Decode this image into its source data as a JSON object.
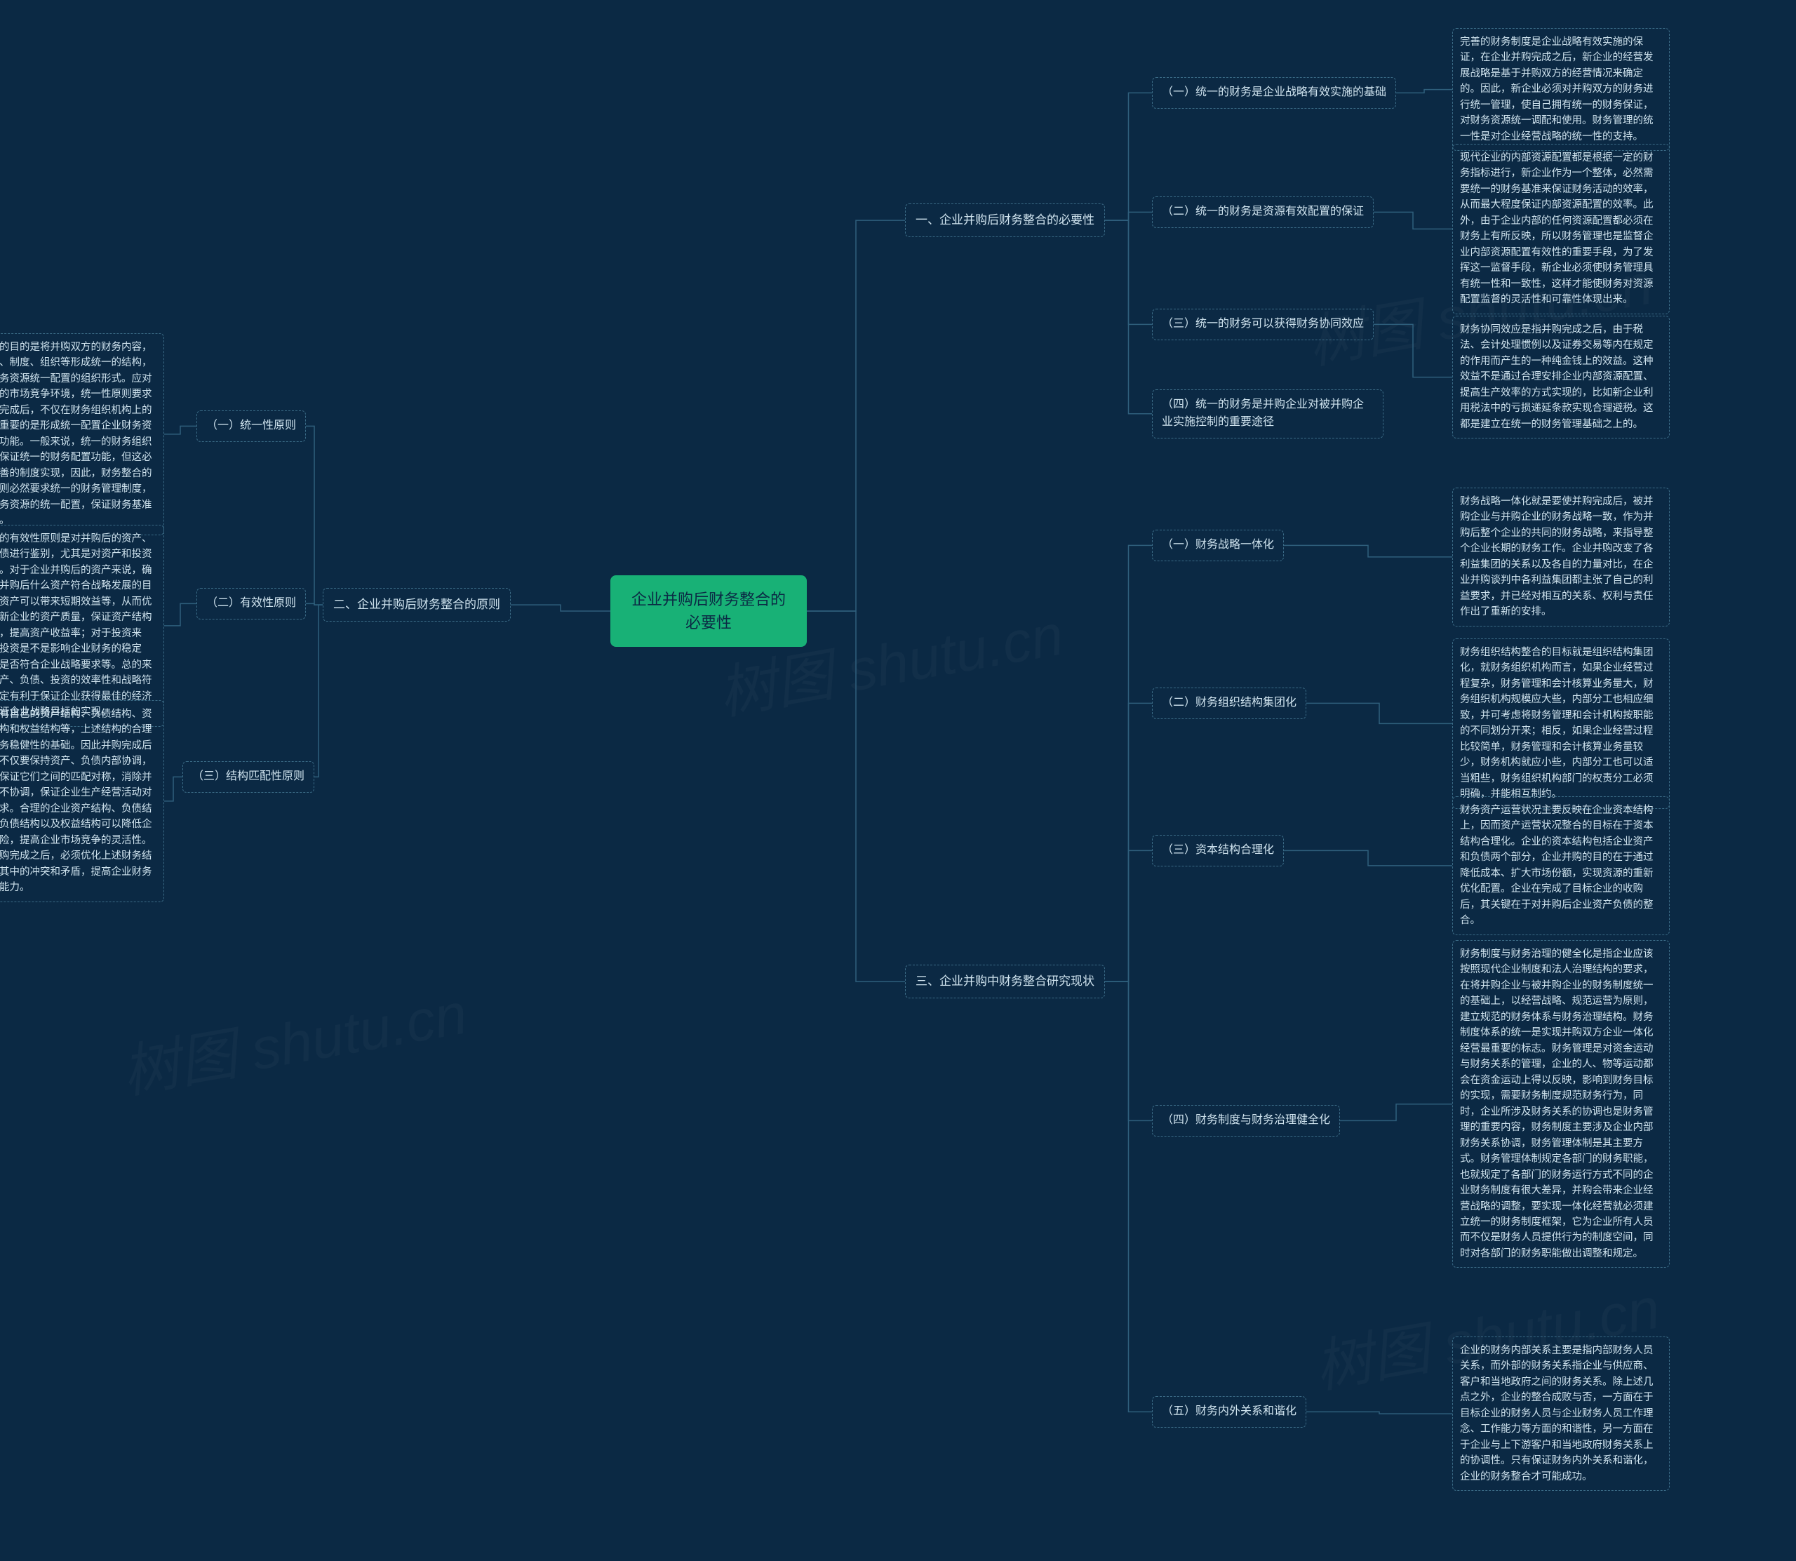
{
  "colors": {
    "background": "#0b2944",
    "root_bg": "#18b176",
    "root_text": "#0b2944",
    "node_border": "#3b6b86",
    "node_text": "#cfe3ee",
    "connector": "#2f5f7c",
    "watermark": "rgba(255,255,255,0.03)"
  },
  "watermark_text": "树图 shutu.cn",
  "root": "企业并购后财务整合的必要性",
  "branch1": {
    "title": "一、企业并购后财务整合的必要性",
    "s1": {
      "label": "（一）统一的财务是企业战略有效实施的基础",
      "leaf": "完善的财务制度是企业战略有效实施的保证，在企业并购完成之后，新企业的经营发展战略是基于并购双方的经营情况来确定的。因此，新企业必须对并购双方的财务进行统一管理，使自己拥有统一的财务保证，对财务资源统一调配和使用。财务管理的统一性是对企业经营战略的统一性的支持。"
    },
    "s2": {
      "label": "（二）统一的财务是资源有效配置的保证",
      "leaf": "现代企业的内部资源配置都是根据一定的财务指标进行，新企业作为一个整体，必然需要统一的财务基准来保证财务活动的效率，从而最大程度保证内部资源配置的效率。此外，由于企业内部的任何资源配置都必须在财务上有所反映，所以财务管理也是监督企业内部资源配置有效性的重要手段，为了发挥这一监督手段，新企业必须使财务管理具有统一性和一致性，这样才能使财务对资源配置监督的灵活性和可靠性体现出来。"
    },
    "s3": {
      "label": "（三）统一的财务可以获得财务协同效应",
      "leaf": "财务协同效应是指并购完成之后，由于税法、会计处理惯例以及证券交易等内在规定的作用而产生的一种纯金钱上的效益。这种效益不是通过合理安排企业内部资源配置、提高生产效率的方式实现的，比如新企业利用税法中的亏损递延条款实现合理避税。这都是建立在统一的财务管理基础之上的。"
    },
    "s4": {
      "label": "（四）统一的财务是并购企业对被并购企业实施控制的重要途径"
    }
  },
  "branch2": {
    "title": "二、企业并购后财务整合的原则",
    "s1": {
      "label": "（一）统一性原则",
      "leaf": "财务整合的目的是将并购双方的财务内容，包括资源、制度、组织等形成统一的结构，以确定财务资源统一配置的组织形式。应对复杂多变的市场竞争环境，统一性原则要求企业并购完成后，不仅在财务组织机构上的统一，更重要的是形成统一配置企业财务资源的内在功能。一般来说，统一的财务组织机构可以保证统一的财务配置功能，但这必须通过完善的制度实现，因此，财务整合的统一性原则必然要求统一的财务管理制度，以实现财务资源的统一配置，保证财务基准的一致性。"
    },
    "s2": {
      "label": "（二）有效性原则",
      "leaf": "财务整合的有效性原则是对并购后的资产、投资、负债进行鉴别，尤其是对资产和投资进行鉴别。对于企业并购后的资产来说，确定企业在并购后什么资产符合战略发展的目的、什么资产可以带来短期效益等，从而优化并购后新企业的资产质量，保证资产结构的合理性，提高资产收益率；对于投资来说，某些投资是不是影响企业财务的稳定性，投资是否符合企业战略要求等。总的来说，对资产、负债、投资的效率性和战略符合性的确定有利于保证企业获得最佳的经济效益，保证企业战略目标的实现。"
    },
    "s3": {
      "label": "（三）结构匹配性原则",
      "leaf": "企业必定有自己的资产结构、负债结构、资产负债结构和权益结构等，上述结构的合理匹配是财务稳健性的基础。因此并购完成后的新企业不仅要保持资产、负债内部协调，而且需要保证它们之间的匹配对称，消除并购双方的不协调，保证企业生产经营活动对财务的要求。合理的企业资产结构、负债结构、资产负债结构以及权益结构可以降低企业经营风险，提高企业市场竞争的灵活性。因此，并购完成之后，必须优化上述财务结构，消除其中的冲突和矛盾，提高企业财务协同效应能力。"
    }
  },
  "branch3": {
    "title": "三、企业并购中财务整合研究现状",
    "s1": {
      "label": "（一）财务战略一体化",
      "leaf": "财务战略一体化就是要使并购完成后，被并购企业与并购企业的财务战略一致，作为并购后整个企业的共同的财务战略，来指导整个企业长期的财务工作。企业并购改变了各利益集团的关系以及各自的力量对比，在企业并购谈判中各利益集团都主张了自己的利益要求，并已经对相互的关系、权利与责任作出了重新的安排。"
    },
    "s2": {
      "label": "（二）财务组织结构集团化",
      "leaf": "财务组织结构整合的目标就是组织结构集团化，就财务组织机构而言，如果企业经营过程复杂，财务管理和会计核算业务量大，财务组织机构规模应大些，内部分工也相应细致，并可考虑将财务管理和会计机构按职能的不同划分开来；相反，如果企业经营过程比较简单，财务管理和会计核算业务量较少，财务机构就应小些，内部分工也可以适当粗些，财务组织机构部门的权责分工必须明确，并能相互制约。"
    },
    "s3": {
      "label": "（三）资本结构合理化",
      "leaf": "财务资产运营状况主要反映在企业资本结构上，因而资产运营状况整合的目标在于资本结构合理化。企业的资本结构包括企业资产和负债两个部分，企业并购的目的在于通过降低成本、扩大市场份额，实现资源的重新优化配置。企业在完成了目标企业的收购后，其关键在于对并购后企业资产负债的整合。"
    },
    "s4": {
      "label": "（四）财务制度与财务治理健全化",
      "leaf": "财务制度与财务治理的健全化是指企业应该按照现代企业制度和法人治理结构的要求，在将并购企业与被并购企业的财务制度统一的基础上，以经营战略、规范运营为原则，建立规范的财务体系与财务治理结构。财务制度体系的统一是实现并购双方企业一体化经营最重要的标志。财务管理是对资金运动与财务关系的管理，企业的人、物等运动都会在资金运动上得以反映，影响到财务目标的实现，需要财务制度规范财务行为，同时，企业所涉及财务关系的协调也是财务管理的重要内容，财务制度主要涉及企业内部财务关系协调，财务管理体制是其主要方式。财务管理体制规定各部门的财务职能，也就规定了各部门的财务运行方式不同的企业财务制度有很大差异，并购会带来企业经营战略的调整，要实现一体化经营就必须建立统一的财务制度框架，它为企业所有人员而不仅是财务人员提供行为的制度空间，同时对各部门的财务职能做出调整和规定。"
    },
    "s5": {
      "label": "（五）财务内外关系和谐化",
      "leaf": "企业的财务内部关系主要是指内部财务人员关系，而外部的财务关系指企业与供应商、客户和当地政府之间的财务关系。除上述几点之外，企业的整合成败与否，一方面在于目标企业的财务人员与企业财务人员工作理念、工作能力等方面的和谐性，另一方面在于企业与上下游客户和当地政府财务关系上的协调性。只有保证财务内外关系和谐化，企业的财务整合才可能成功。"
    }
  }
}
